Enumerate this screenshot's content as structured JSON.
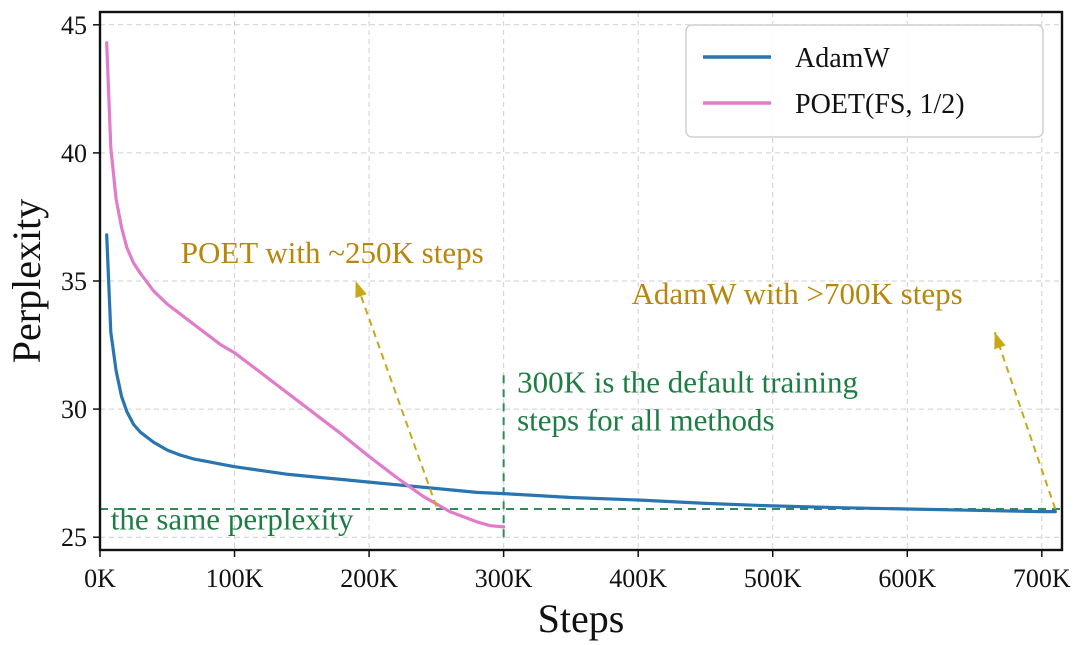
{
  "chart_data": {
    "type": "line",
    "title": "",
    "xlabel": "Steps",
    "ylabel": "Perplexity",
    "xlim": [
      0,
      715000
    ],
    "ylim": [
      24.5,
      45.5
    ],
    "grid": true,
    "legend_position": "top-right",
    "x_ticks": [
      0,
      100000,
      200000,
      300000,
      400000,
      500000,
      600000,
      700000
    ],
    "x_tick_labels": [
      "0K",
      "100K",
      "200K",
      "300K",
      "400K",
      "500K",
      "600K",
      "700K"
    ],
    "y_ticks": [
      25,
      30,
      35,
      40,
      45
    ],
    "y_tick_labels": [
      "25",
      "30",
      "35",
      "40",
      "45"
    ],
    "series": [
      {
        "name": "AdamW",
        "color": "#2a75b0",
        "x": [
          5000,
          8000,
          12000,
          16000,
          20000,
          25000,
          30000,
          40000,
          50000,
          60000,
          70000,
          80000,
          90000,
          100000,
          120000,
          140000,
          160000,
          180000,
          200000,
          220000,
          250000,
          280000,
          300000,
          350000,
          400000,
          450000,
          500000,
          550000,
          600000,
          650000,
          700000,
          710000
        ],
        "y": [
          36.8,
          33.0,
          31.5,
          30.5,
          29.9,
          29.4,
          29.1,
          28.7,
          28.4,
          28.2,
          28.05,
          27.95,
          27.85,
          27.75,
          27.6,
          27.45,
          27.35,
          27.25,
          27.15,
          27.05,
          26.9,
          26.75,
          26.7,
          26.55,
          26.45,
          26.32,
          26.22,
          26.15,
          26.1,
          26.05,
          26.0,
          26.0
        ]
      },
      {
        "name": "POET(FS, 1/2)",
        "color": "#e07cca",
        "x": [
          5000,
          8000,
          12000,
          16000,
          20000,
          25000,
          30000,
          40000,
          50000,
          60000,
          70000,
          80000,
          90000,
          100000,
          110000,
          120000,
          140000,
          160000,
          180000,
          200000,
          220000,
          240000,
          260000,
          280000,
          290000,
          300000
        ],
        "y": [
          44.3,
          40.2,
          38.2,
          37.1,
          36.3,
          35.7,
          35.3,
          34.6,
          34.1,
          33.7,
          33.3,
          32.9,
          32.5,
          32.2,
          31.8,
          31.4,
          30.6,
          29.8,
          29.0,
          28.15,
          27.35,
          26.6,
          26.0,
          25.6,
          25.45,
          25.4
        ]
      }
    ],
    "reference_lines": [
      {
        "orientation": "horizontal",
        "value": 26.1,
        "color": "#2e8b57"
      },
      {
        "orientation": "vertical",
        "value": 300000,
        "from": 25.0,
        "to": 31.5,
        "color": "#2e8b57"
      }
    ],
    "annotations": [
      {
        "text": "POET with ~250K steps",
        "color": "#b8860b",
        "anchor": [
          60000,
          35.7
        ],
        "arrow_from": [
          250000,
          26.2
        ],
        "arrow_to": [
          190000,
          35.0
        ]
      },
      {
        "text": "AdamW with >700K steps",
        "color": "#b8860b",
        "anchor": [
          395000,
          34.1
        ],
        "arrow_from": [
          710000,
          26.1
        ],
        "arrow_to": [
          665000,
          33.0
        ]
      },
      {
        "text_lines": [
          "300K is the default training",
          "steps for all methods"
        ],
        "color": "#1e7d45",
        "anchor": [
          310000,
          30.65
        ]
      },
      {
        "text": "the same perplexity",
        "color": "#1e7d45",
        "anchor": [
          8000,
          25.3
        ]
      }
    ]
  }
}
